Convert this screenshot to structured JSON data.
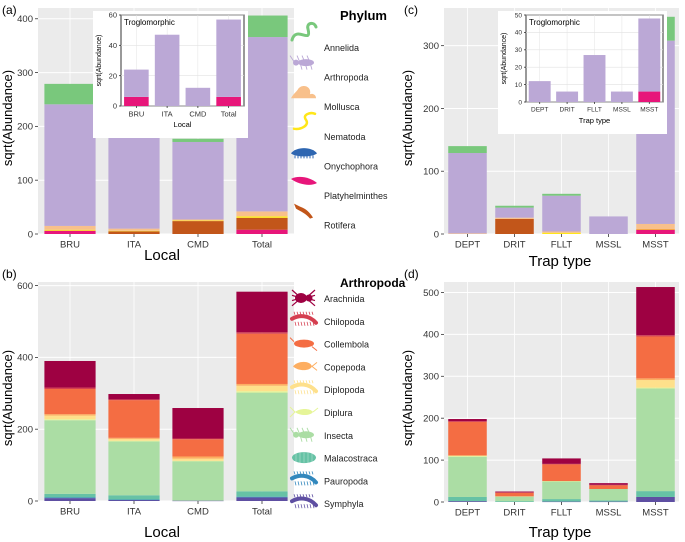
{
  "colors": {
    "panel_bg": "#ebebeb",
    "grid": "#ffffff",
    "annelida": "#79c87c",
    "arthropoda": "#bba8d6",
    "mollusca": "#f8c08b",
    "nematoda": "#ffe619",
    "onychophora": "#2e66b1",
    "platyhelminthes": "#e7167a",
    "rotifera": "#c2561a",
    "arachnida": "#9e0142",
    "chilopoda": "#d53e4f",
    "collembola": "#f46d43",
    "copepoda": "#fdae61",
    "diplopoda": "#fee08b",
    "diplura": "#e6f598",
    "insecta": "#abdda4",
    "malacostraca": "#66c2a5",
    "pauropoda": "#3288bd",
    "symphyla": "#5e4fa2"
  },
  "legends": {
    "phylum": {
      "title": "Phylum",
      "items": [
        {
          "label": "Annelida",
          "icon": "worm-icon",
          "color": "#79c87c"
        },
        {
          "label": "Arthropoda",
          "icon": "insect-icon",
          "color": "#bba8d6"
        },
        {
          "label": "Mollusca",
          "icon": "snail-icon",
          "color": "#f8c08b"
        },
        {
          "label": "Nematoda",
          "icon": "nematode-icon",
          "color": "#ffe619"
        },
        {
          "label": "Onychophora",
          "icon": "velvet-worm-icon",
          "color": "#2e66b1"
        },
        {
          "label": "Platyhelminthes",
          "icon": "flatworm-icon",
          "color": "#e7167a"
        },
        {
          "label": "Rotifera",
          "icon": "rotifer-icon",
          "color": "#c2561a"
        }
      ]
    },
    "arthropoda": {
      "title": "Arthropoda",
      "items": [
        {
          "label": "Arachnida",
          "icon": "spider-icon",
          "color": "#9e0142"
        },
        {
          "label": "Chilopoda",
          "icon": "centipede-icon",
          "color": "#d53e4f"
        },
        {
          "label": "Collembola",
          "icon": "springtail-icon",
          "color": "#f46d43"
        },
        {
          "label": "Copepoda",
          "icon": "copepod-icon",
          "color": "#fdae61"
        },
        {
          "label": "Diplopoda",
          "icon": "millipede-icon",
          "color": "#fee08b"
        },
        {
          "label": "Diplura",
          "icon": "dipluran-icon",
          "color": "#e6f598"
        },
        {
          "label": "Insecta",
          "icon": "insect-icon",
          "color": "#abdda4"
        },
        {
          "label": "Malacostraca",
          "icon": "isopod-icon",
          "color": "#66c2a5"
        },
        {
          "label": "Pauropoda",
          "icon": "pauropod-icon",
          "color": "#3288bd"
        },
        {
          "label": "Symphyla",
          "icon": "symphylan-icon",
          "color": "#5e4fa2"
        }
      ]
    }
  },
  "chart_data": [
    {
      "id": "a",
      "panel_label": "(a)",
      "type": "bar",
      "stacked": true,
      "xlabel": "Local",
      "ylabel": "sqrt(Abundance)",
      "ylim": [
        0,
        420
      ],
      "yticks": [
        0,
        100,
        200,
        300,
        400
      ],
      "categories": [
        "BRU",
        "ITA",
        "CMD",
        "Total"
      ],
      "series": [
        {
          "name": "Platyhelminthes",
          "color": "#e7167a",
          "values": [
            6,
            0,
            0,
            8
          ]
        },
        {
          "name": "Rotifera",
          "color": "#c2561a",
          "values": [
            0,
            5,
            24,
            22
          ]
        },
        {
          "name": "Onychophora",
          "color": "#2e66b1",
          "values": [
            0,
            0,
            0,
            0
          ]
        },
        {
          "name": "Nematoda",
          "color": "#ffe619",
          "values": [
            2,
            1,
            1,
            3
          ]
        },
        {
          "name": "Mollusca",
          "color": "#f8c08b",
          "values": [
            7,
            4,
            2,
            9
          ]
        },
        {
          "name": "Arthropoda",
          "color": "#bba8d6",
          "values": [
            226,
            183,
            144,
            324
          ]
        },
        {
          "name": "Annelida",
          "color": "#79c87c",
          "values": [
            38,
            13,
            6,
            40
          ]
        }
      ],
      "inset": {
        "title": "Troglomorphic",
        "xlabel": "Local",
        "ylabel": "sqrt(Abundance)",
        "ylim": [
          0,
          60
        ],
        "yticks": [
          0,
          20,
          40,
          60
        ],
        "categories": [
          "BRU",
          "ITA",
          "CMD",
          "Total"
        ],
        "series": [
          {
            "name": "Platyhelminthes",
            "color": "#e7167a",
            "values": [
              6,
              0,
              0,
              6
            ]
          },
          {
            "name": "Arthropoda",
            "color": "#bba8d6",
            "values": [
              18,
              47,
              12,
              51
            ]
          }
        ]
      }
    },
    {
      "id": "b",
      "panel_label": "(b)",
      "type": "bar",
      "stacked": true,
      "xlabel": "Local",
      "ylabel": "sqrt(Abundance)",
      "ylim": [
        0,
        610
      ],
      "yticks": [
        0,
        200,
        400,
        600
      ],
      "categories": [
        "BRU",
        "ITA",
        "CMD",
        "Total"
      ],
      "series": [
        {
          "name": "Symphyla",
          "color": "#5e4fa2",
          "values": [
            8,
            3,
            1,
            10
          ]
        },
        {
          "name": "Pauropoda",
          "color": "#3288bd",
          "values": [
            2,
            1,
            0,
            2
          ]
        },
        {
          "name": "Malacostraca",
          "color": "#66c2a5",
          "values": [
            10,
            12,
            0,
            15
          ]
        },
        {
          "name": "Insecta",
          "color": "#abdda4",
          "values": [
            205,
            150,
            110,
            275
          ]
        },
        {
          "name": "Diplura",
          "color": "#e6f598",
          "values": [
            3,
            2,
            1,
            4
          ]
        },
        {
          "name": "Diplopoda",
          "color": "#fee08b",
          "values": [
            10,
            5,
            6,
            15
          ]
        },
        {
          "name": "Copepoda",
          "color": "#fdae61",
          "values": [
            4,
            3,
            6,
            5
          ]
        },
        {
          "name": "Collembola",
          "color": "#f46d43",
          "values": [
            70,
            105,
            48,
            140
          ]
        },
        {
          "name": "Chilopoda",
          "color": "#d53e4f",
          "values": [
            4,
            2,
            2,
            4
          ]
        },
        {
          "name": "Arachnida",
          "color": "#9e0142",
          "values": [
            74,
            15,
            85,
            113
          ]
        }
      ]
    },
    {
      "id": "c",
      "panel_label": "(c)",
      "type": "bar",
      "stacked": true,
      "xlabel": "Trap type",
      "ylabel": "sqrt(Abundance)",
      "ylim": [
        0,
        360
      ],
      "yticks": [
        0,
        100,
        200,
        300
      ],
      "categories": [
        "DEPT",
        "DRIT",
        "FLLT",
        "MSSL",
        "MSST"
      ],
      "series": [
        {
          "name": "Platyhelminthes",
          "color": "#e7167a",
          "values": [
            0,
            0,
            0,
            0,
            7
          ]
        },
        {
          "name": "Rotifera",
          "color": "#c2561a",
          "values": [
            0,
            24,
            0,
            0,
            0
          ]
        },
        {
          "name": "Onychophora",
          "color": "#2e66b1",
          "values": [
            0,
            0,
            0,
            0,
            0
          ]
        },
        {
          "name": "Nematoda",
          "color": "#ffe619",
          "values": [
            0,
            0,
            2,
            0,
            1
          ]
        },
        {
          "name": "Mollusca",
          "color": "#f8c08b",
          "values": [
            1,
            2,
            2,
            0,
            8
          ]
        },
        {
          "name": "Arthropoda",
          "color": "#bba8d6",
          "values": [
            128,
            16,
            57,
            28,
            292
          ]
        },
        {
          "name": "Annelida",
          "color": "#79c87c",
          "values": [
            11,
            3,
            3,
            0,
            38
          ]
        }
      ],
      "inset": {
        "title": "Troglomorphic",
        "xlabel": "Trap type",
        "ylabel": "sqrt(Abundance)",
        "ylim": [
          0,
          50
        ],
        "yticks": [
          0,
          10,
          20,
          30,
          40,
          50
        ],
        "categories": [
          "DEPT",
          "DRIT",
          "FLLT",
          "MSSL",
          "MSST"
        ],
        "series": [
          {
            "name": "Platyhelminthes",
            "color": "#e7167a",
            "values": [
              0,
              0,
              0,
              0,
              6
            ]
          },
          {
            "name": "Arthropoda",
            "color": "#bba8d6",
            "values": [
              12,
              6,
              27,
              6,
              42
            ]
          }
        ]
      }
    },
    {
      "id": "d",
      "panel_label": "(d)",
      "type": "bar",
      "stacked": true,
      "xlabel": "Trap type",
      "ylabel": "sqrt(Abundance)",
      "ylim": [
        0,
        525
      ],
      "yticks": [
        0,
        100,
        200,
        300,
        400,
        500
      ],
      "categories": [
        "DEPT",
        "DRIT",
        "FLLT",
        "MSSL",
        "MSST"
      ],
      "series": [
        {
          "name": "Symphyla",
          "color": "#5e4fa2",
          "values": [
            2,
            0,
            1,
            1,
            12
          ]
        },
        {
          "name": "Pauropoda",
          "color": "#3288bd",
          "values": [
            0,
            0,
            0,
            0,
            0
          ]
        },
        {
          "name": "Malacostraca",
          "color": "#66c2a5",
          "values": [
            10,
            2,
            6,
            3,
            14
          ]
        },
        {
          "name": "Insecta",
          "color": "#abdda4",
          "values": [
            96,
            11,
            42,
            27,
            245
          ]
        },
        {
          "name": "Diplura",
          "color": "#e6f598",
          "values": [
            2,
            0,
            1,
            0,
            2
          ]
        },
        {
          "name": "Diplopoda",
          "color": "#fee08b",
          "values": [
            1,
            0,
            0,
            0,
            18
          ]
        },
        {
          "name": "Copepoda",
          "color": "#fdae61",
          "values": [
            0,
            1,
            0,
            0,
            4
          ]
        },
        {
          "name": "Collembola",
          "color": "#f46d43",
          "values": [
            80,
            8,
            40,
            9,
            100
          ]
        },
        {
          "name": "Chilopoda",
          "color": "#d53e4f",
          "values": [
            2,
            1,
            1,
            1,
            3
          ]
        },
        {
          "name": "Arachnida",
          "color": "#9e0142",
          "values": [
            5,
            2,
            13,
            4,
            115
          ]
        }
      ]
    }
  ]
}
